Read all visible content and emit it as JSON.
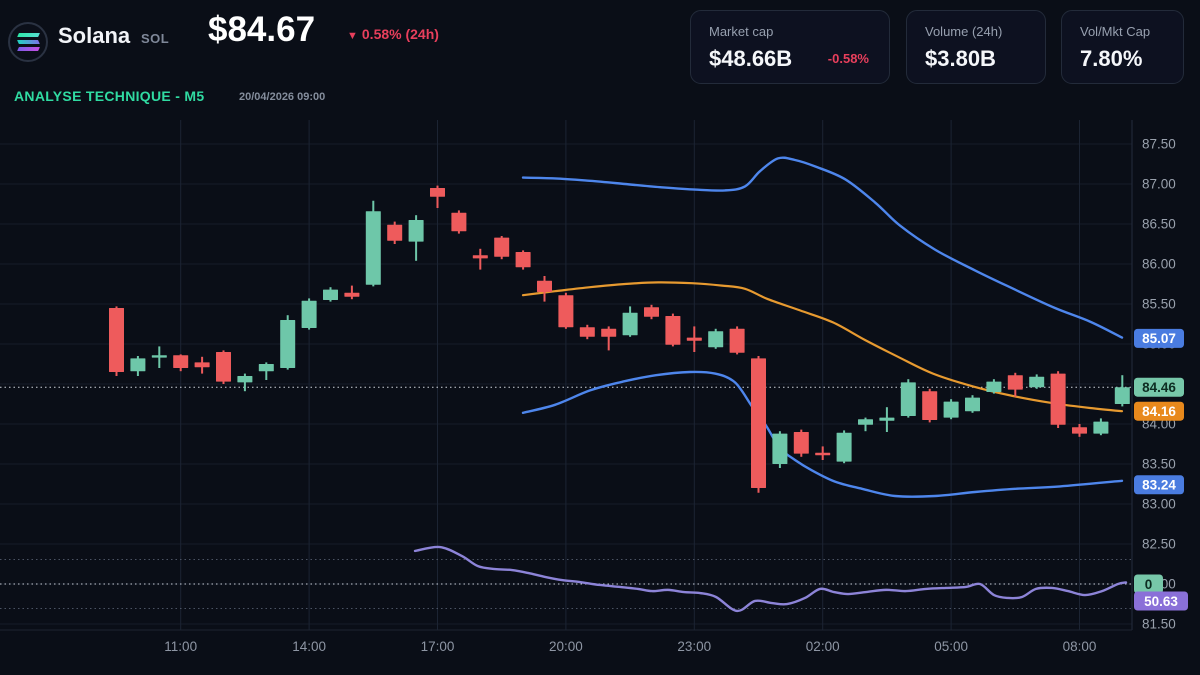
{
  "header": {
    "coin_name": "Solana",
    "ticker": "SOL",
    "price": "$84.67",
    "change_arrow": "▼",
    "change": "0.58% (24h)",
    "analysis_label": "ANALYSE TECHNIQUE - M5",
    "timestamp": "20/04/2026 09:00"
  },
  "stats": [
    {
      "label": "Market cap",
      "value": "$48.66B",
      "change": "-0.58%"
    },
    {
      "label": "Volume (24h)",
      "value": "$3.80B",
      "change": ""
    },
    {
      "label": "Vol/Mkt Cap",
      "value": "7.80%",
      "change": ""
    }
  ],
  "colors": {
    "up": "#6ec7a9",
    "down": "#ee5b5c",
    "band_blue": "#4e86ec",
    "band_orange": "#e79a30",
    "indicator_purple": "#8d84d8",
    "badge_blue": "#4a7ce0",
    "badge_green": "#77c7a9",
    "badge_orange": "#e8891c",
    "badge_purple": "#8a70d8",
    "accent_green": "#30dba2",
    "accent_red": "#e83f5c"
  },
  "chart_data": {
    "type": "candlestick",
    "title": "Solana SOL price chart with Bollinger bands and oscillator",
    "x_tick_labels": [
      "11:00",
      "14:00",
      "17:00",
      "20:00",
      "23:00",
      "02:00",
      "05:00",
      "08:00"
    ],
    "y_tick_labels": [
      "87.50",
      "87.00",
      "86.50",
      "86.00",
      "85.50",
      "85.00",
      "84.50",
      "84.00",
      "83.50",
      "83.00",
      "82.50",
      "82.00",
      "81.50"
    ],
    "y_range": {
      "min": 81.5,
      "max": 87.5,
      "step": 0.5
    },
    "last_price_line": 84.46,
    "candles_ohlc": [
      [
        85.45,
        85.47,
        84.6,
        84.65
      ],
      [
        84.66,
        84.85,
        84.6,
        84.82
      ],
      [
        84.83,
        84.97,
        84.7,
        84.86
      ],
      [
        84.86,
        84.87,
        84.66,
        84.7
      ],
      [
        84.77,
        84.84,
        84.63,
        84.71
      ],
      [
        84.9,
        84.92,
        84.5,
        84.53
      ],
      [
        84.52,
        84.63,
        84.41,
        84.6
      ],
      [
        84.66,
        84.77,
        84.55,
        84.75
      ],
      [
        84.7,
        85.36,
        84.68,
        85.3
      ],
      [
        85.2,
        85.57,
        85.18,
        85.54
      ],
      [
        85.55,
        85.71,
        85.53,
        85.68
      ],
      [
        85.64,
        85.73,
        85.56,
        85.59
      ],
      [
        85.74,
        86.79,
        85.72,
        86.66
      ],
      [
        86.49,
        86.53,
        86.25,
        86.29
      ],
      [
        86.28,
        86.61,
        86.04,
        86.55
      ],
      [
        86.95,
        86.98,
        86.7,
        86.84
      ],
      [
        86.64,
        86.67,
        86.38,
        86.41
      ],
      [
        86.11,
        86.19,
        85.93,
        86.07
      ],
      [
        86.33,
        86.35,
        86.06,
        86.09
      ],
      [
        86.15,
        86.17,
        85.93,
        85.96
      ],
      [
        85.79,
        85.85,
        85.53,
        85.65
      ],
      [
        85.61,
        85.64,
        85.19,
        85.21
      ],
      [
        85.21,
        85.24,
        85.06,
        85.09
      ],
      [
        85.19,
        85.22,
        84.92,
        85.09
      ],
      [
        85.11,
        85.47,
        85.09,
        85.39
      ],
      [
        85.46,
        85.49,
        85.31,
        85.34
      ],
      [
        85.35,
        85.38,
        84.97,
        84.99
      ],
      [
        85.08,
        85.22,
        84.9,
        85.04
      ],
      [
        84.96,
        85.19,
        84.94,
        85.16
      ],
      [
        85.19,
        85.22,
        84.87,
        84.89
      ],
      [
        84.82,
        84.85,
        83.14,
        83.2
      ],
      [
        83.5,
        83.91,
        83.45,
        83.88
      ],
      [
        83.9,
        83.93,
        83.59,
        83.63
      ],
      [
        83.64,
        83.72,
        83.55,
        83.61
      ],
      [
        83.53,
        83.92,
        83.51,
        83.89
      ],
      [
        83.99,
        84.08,
        83.91,
        84.06
      ],
      [
        84.04,
        84.21,
        83.9,
        84.08
      ],
      [
        84.1,
        84.56,
        84.08,
        84.52
      ],
      [
        84.41,
        84.44,
        84.02,
        84.05
      ],
      [
        84.08,
        84.31,
        84.06,
        84.28
      ],
      [
        84.16,
        84.36,
        84.14,
        84.33
      ],
      [
        84.4,
        84.56,
        84.38,
        84.53
      ],
      [
        84.61,
        84.64,
        84.34,
        84.43
      ],
      [
        84.46,
        84.62,
        84.44,
        84.59
      ],
      [
        84.63,
        84.66,
        83.95,
        83.99
      ],
      [
        83.96,
        84.0,
        83.84,
        83.88
      ],
      [
        83.88,
        84.07,
        83.86,
        84.03
      ],
      [
        84.25,
        84.61,
        84.22,
        84.46
      ]
    ],
    "bands": {
      "upper": [
        [
          523,
          87.08
        ],
        [
          555,
          87.07
        ],
        [
          590,
          87.04
        ],
        [
          625,
          87.0
        ],
        [
          660,
          86.96
        ],
        [
          695,
          86.93
        ],
        [
          725,
          86.92
        ],
        [
          745,
          86.97
        ],
        [
          760,
          87.16
        ],
        [
          778,
          87.32
        ],
        [
          795,
          87.3
        ],
        [
          815,
          87.22
        ],
        [
          845,
          87.06
        ],
        [
          875,
          86.77
        ],
        [
          900,
          86.48
        ],
        [
          935,
          86.18
        ],
        [
          975,
          85.92
        ],
        [
          1015,
          85.68
        ],
        [
          1055,
          85.45
        ],
        [
          1090,
          85.28
        ],
        [
          1122,
          85.08
        ]
      ],
      "middle": [
        [
          523,
          85.61
        ],
        [
          555,
          85.66
        ],
        [
          590,
          85.71
        ],
        [
          625,
          85.75
        ],
        [
          658,
          85.77
        ],
        [
          692,
          85.76
        ],
        [
          722,
          85.73
        ],
        [
          745,
          85.69
        ],
        [
          768,
          85.56
        ],
        [
          800,
          85.42
        ],
        [
          833,
          85.27
        ],
        [
          865,
          85.05
        ],
        [
          898,
          84.84
        ],
        [
          933,
          84.63
        ],
        [
          973,
          84.47
        ],
        [
          1013,
          84.35
        ],
        [
          1053,
          84.26
        ],
        [
          1090,
          84.2
        ],
        [
          1122,
          84.16
        ]
      ],
      "lower": [
        [
          523,
          84.14
        ],
        [
          555,
          84.24
        ],
        [
          590,
          84.42
        ],
        [
          623,
          84.53
        ],
        [
          656,
          84.61
        ],
        [
          690,
          84.65
        ],
        [
          715,
          84.63
        ],
        [
          735,
          84.52
        ],
        [
          752,
          84.22
        ],
        [
          765,
          84.0
        ],
        [
          780,
          83.7
        ],
        [
          795,
          83.55
        ],
        [
          812,
          83.42
        ],
        [
          835,
          83.28
        ],
        [
          862,
          83.19
        ],
        [
          895,
          83.1
        ],
        [
          935,
          83.1
        ],
        [
          975,
          83.15
        ],
        [
          1015,
          83.19
        ],
        [
          1060,
          83.22
        ],
        [
          1122,
          83.29
        ]
      ]
    },
    "price_badges": [
      {
        "label": "85.07",
        "value": 85.07,
        "color_key": "badge_blue",
        "text_color": "#ffffff"
      },
      {
        "label": "84.46",
        "value": 84.46,
        "color_key": "badge_green",
        "text_color": "#0d2d22"
      },
      {
        "label": "84.16",
        "value": 84.16,
        "color_key": "badge_orange",
        "text_color": "#ffffff"
      },
      {
        "label": "83.24",
        "value": 83.24,
        "color_key": "badge_blue",
        "text_color": "#ffffff"
      }
    ],
    "oscillator": {
      "points": [
        [
          415,
          63.5
        ],
        [
          440,
          65.1
        ],
        [
          462,
          61.4
        ],
        [
          478,
          57.3
        ],
        [
          495,
          56.1
        ],
        [
          512,
          55.7
        ],
        [
          528,
          54.5
        ],
        [
          545,
          52.9
        ],
        [
          562,
          51.6
        ],
        [
          580,
          50.8
        ],
        [
          600,
          49.6
        ],
        [
          620,
          48.8
        ],
        [
          638,
          48.0
        ],
        [
          652,
          47.1
        ],
        [
          668,
          47.6
        ],
        [
          684,
          46.7
        ],
        [
          700,
          46.3
        ],
        [
          716,
          44.7
        ],
        [
          737,
          39.0
        ],
        [
          755,
          43.1
        ],
        [
          772,
          42.2
        ],
        [
          787,
          41.8
        ],
        [
          805,
          44.3
        ],
        [
          820,
          48.0
        ],
        [
          834,
          46.7
        ],
        [
          848,
          45.9
        ],
        [
          866,
          46.7
        ],
        [
          886,
          47.6
        ],
        [
          906,
          47.1
        ],
        [
          926,
          48.0
        ],
        [
          946,
          48.4
        ],
        [
          966,
          48.8
        ],
        [
          980,
          50.0
        ],
        [
          994,
          45.5
        ],
        [
          1008,
          44.3
        ],
        [
          1022,
          44.7
        ],
        [
          1036,
          48.0
        ],
        [
          1052,
          48.4
        ],
        [
          1068,
          47.1
        ],
        [
          1085,
          45.5
        ],
        [
          1102,
          47.1
        ],
        [
          1118,
          50.0
        ],
        [
          1126,
          50.63
        ]
      ],
      "levels": [
        {
          "value": 60,
          "bright": false
        },
        {
          "value": 50,
          "bright": true
        },
        {
          "value": 40,
          "bright": false
        }
      ],
      "zero_badge_label": "0",
      "last_value_label": "50.63"
    }
  }
}
